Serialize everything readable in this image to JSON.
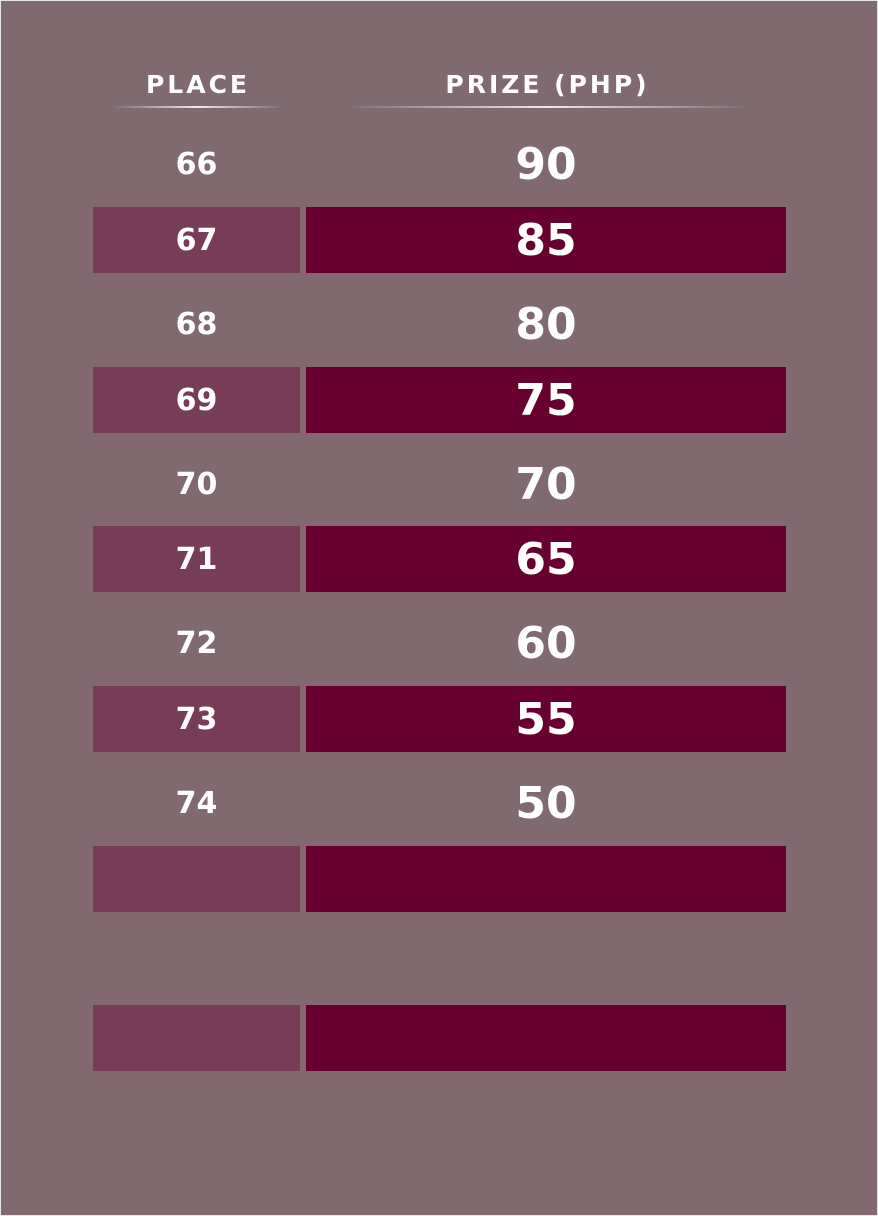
{
  "table": {
    "headers": {
      "place": "PLACE",
      "prize": "PRIZE (PHP)"
    },
    "rows": [
      {
        "place": "66",
        "prize": "90"
      },
      {
        "place": "67",
        "prize": "85"
      },
      {
        "place": "68",
        "prize": "80"
      },
      {
        "place": "69",
        "prize": "75"
      },
      {
        "place": "70",
        "prize": "70"
      },
      {
        "place": "71",
        "prize": "65"
      },
      {
        "place": "72",
        "prize": "60"
      },
      {
        "place": "73",
        "prize": "55"
      },
      {
        "place": "74",
        "prize": "50"
      },
      {
        "place": "",
        "prize": ""
      },
      {
        "place": "",
        "prize": ""
      },
      {
        "place": "",
        "prize": ""
      }
    ]
  },
  "colors": {
    "background": "#806a70",
    "place_band": "#773c57",
    "prize_band": "#68002f",
    "text": "#ffffff"
  }
}
